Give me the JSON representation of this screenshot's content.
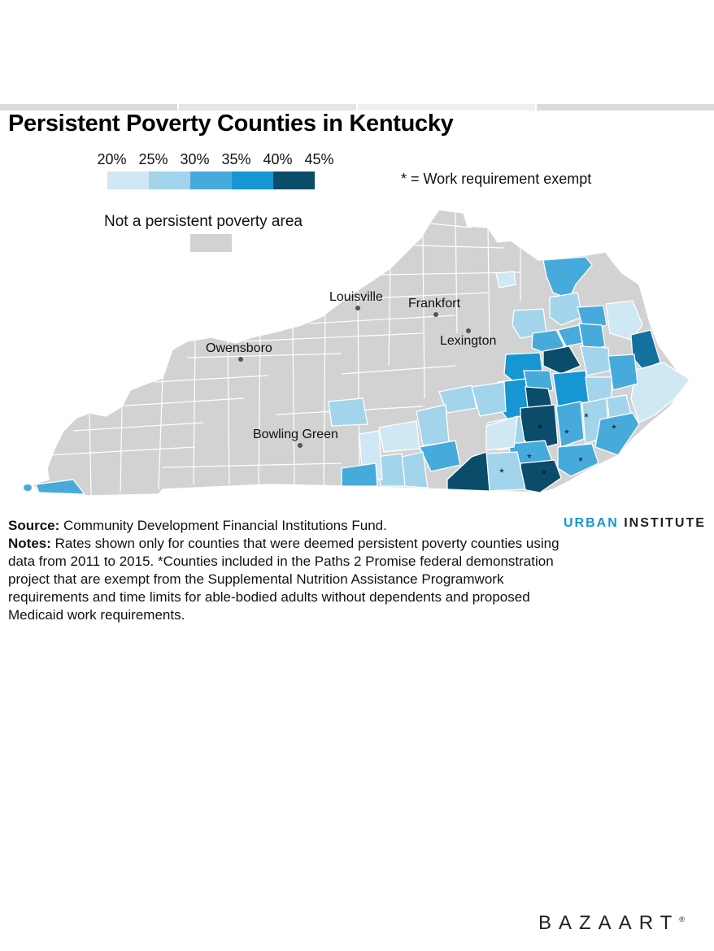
{
  "title": "Persistent Poverty Counties in Kentucky",
  "legend": {
    "labels": [
      "20%",
      "25%",
      "30%",
      "35%",
      "40%",
      "45%"
    ],
    "colors": [
      "#cfe8f3",
      "#a2d4ec",
      "#46abdb",
      "#1696d2",
      "#12719e",
      "#0a4c6a"
    ],
    "not_persistent_label": "Not a persistent poverty area",
    "not_persistent_color": "#d2d2d2",
    "work_note": "* = Work requirement exempt"
  },
  "cities": [
    "Louisville",
    "Frankfort",
    "Lexington",
    "Owensboro",
    "Bowling Green"
  ],
  "asterisk_symbol": "*",
  "source_label": "Source:",
  "source_text": "Community Development Financial Institutions Fund.",
  "notes_label": "Notes:",
  "notes_text": "Rates shown only for counties that were deemed persistent poverty counties using data from 2011 to 2015. *Counties included in the Paths 2 Promise federal demonstration project that are exempt from the Supplemental Nutrition Assistance Programwork requirements and time limits for able-bodied adults without dependents and proposed Medicaid work requirements.",
  "brand": {
    "part1": "URBAN",
    "part2": "INSTITUTE"
  },
  "watermark": "BAZAART",
  "watermark_mark": "®"
}
